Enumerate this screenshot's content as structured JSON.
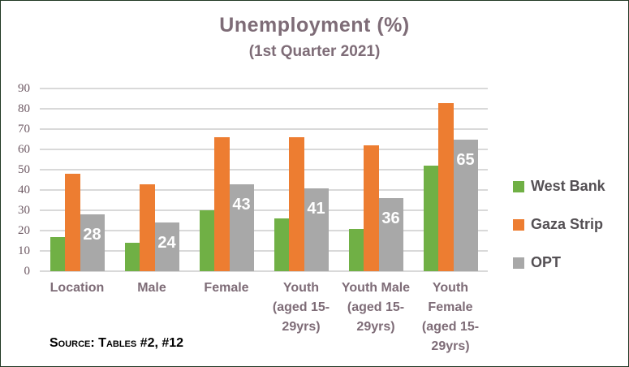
{
  "canvas": {
    "background": "#ffffff",
    "border_color": "#203824"
  },
  "chart_data": {
    "type": "bar",
    "title": "Unemployment (%)",
    "subtitle": "(1st Quarter 2021)",
    "xlabel": "",
    "ylabel": "",
    "ylim": [
      0,
      90
    ],
    "y_ticks": [
      90,
      80,
      70,
      60,
      50,
      40,
      30,
      20,
      10,
      0
    ],
    "grid": true,
    "legend_position": "right",
    "categories": [
      "Location",
      "Male",
      "Female",
      "Youth (aged 15-29yrs)",
      "Youth Male (aged 15-29yrs)",
      "Youth Female (aged 15-29yrs)"
    ],
    "category_label_lines": [
      [
        "Location"
      ],
      [
        "Male"
      ],
      [
        "Female"
      ],
      [
        "Youth",
        "(aged 15-",
        "29yrs)"
      ],
      [
        "Youth Male",
        "(aged 15-",
        "29yrs)"
      ],
      [
        "Youth",
        "Female",
        "(aged 15-",
        "29yrs)"
      ]
    ],
    "series": [
      {
        "name": "West Bank",
        "color": "#70B045",
        "values": [
          17,
          14,
          30,
          26,
          21,
          52
        ],
        "show_value_labels": false
      },
      {
        "name": "Gaza Strip",
        "color": "#ED7D31",
        "values": [
          48,
          43,
          66,
          66,
          62,
          83
        ],
        "show_value_labels": false
      },
      {
        "name": "OPT",
        "color": "#A8A8A8",
        "values": [
          28,
          24,
          43,
          41,
          36,
          65
        ],
        "show_value_labels": true
      }
    ],
    "colors": {
      "gridline": "#D9D9D9",
      "title_text": "#7E6C77",
      "subtitle_text": "#7E6C77",
      "axis_tick_text": "#6E5A64",
      "category_label_text": "#7E6C77",
      "legend_text": "#545054",
      "value_label_text": "#FFFFFF"
    }
  },
  "source": {
    "text": "Source: Tables #2, #12"
  }
}
